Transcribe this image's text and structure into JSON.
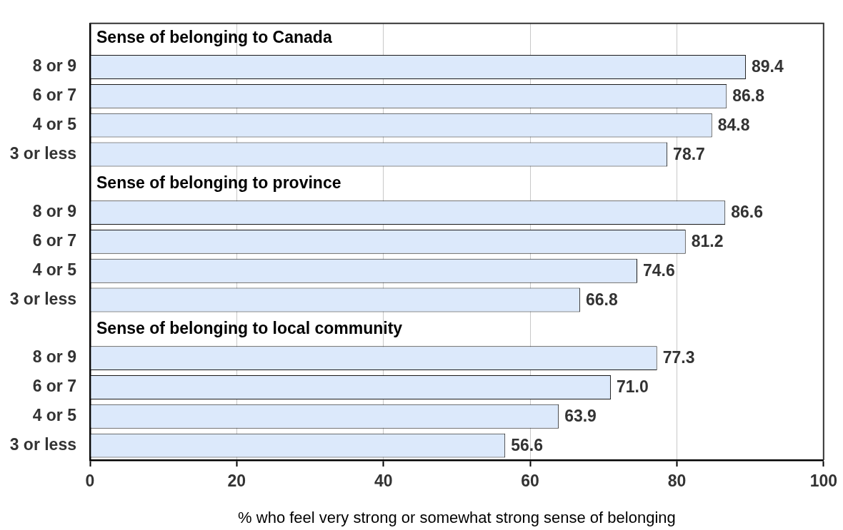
{
  "chart_data": {
    "type": "bar",
    "orientation": "horizontal",
    "color": "#dce9fb",
    "categories": [
      null,
      "8 or 9",
      "6 or 7",
      "4 or 5",
      "3 or less",
      null,
      "8 or 9",
      "6 or 7",
      "4 or 5",
      "3 or less",
      null,
      "8 or 9",
      "6 or 7",
      "4 or 5",
      "3 or less"
    ],
    "values": [
      null,
      89.4,
      86.8,
      84.8,
      78.7,
      null,
      86.6,
      81.2,
      74.6,
      66.8,
      null,
      77.3,
      71.0,
      63.9,
      56.6
    ],
    "value_labels": [
      null,
      "89.4",
      "86.8",
      "84.8",
      "78.7",
      null,
      "86.6",
      "81.2",
      "74.6",
      "66.8",
      null,
      "77.3",
      "71.0",
      "63.9",
      "56.6"
    ],
    "annotations": [
      "Sense of belonging to Canada",
      "Sense of belonging to province",
      "Sense of belonging to local community"
    ],
    "xlabel": "% who feel very strong or somewhat strong sense of belonging",
    "xlim": [
      0,
      100
    ],
    "xticks": [
      0,
      20,
      40,
      60,
      80,
      100
    ],
    "grid": "x"
  }
}
